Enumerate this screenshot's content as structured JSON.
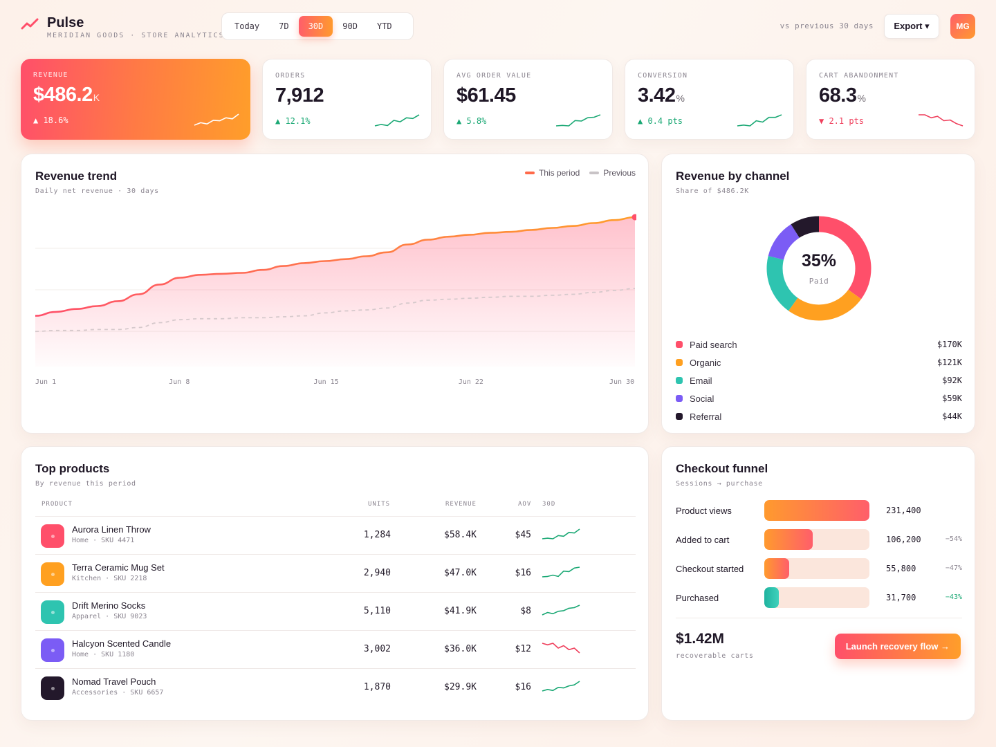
{
  "brand": {
    "name": "Pulse",
    "subtitle": "MERIDIAN GOODS · STORE ANALYTICS"
  },
  "ranges": [
    {
      "label": "Today",
      "active": false
    },
    {
      "label": "7D",
      "active": false
    },
    {
      "label": "30D",
      "active": true
    },
    {
      "label": "90D",
      "active": false
    },
    {
      "label": "YTD",
      "active": false
    }
  ],
  "compare_text": "vs previous 30 days",
  "export_label": "Export ▾",
  "avatar_initials": "MG",
  "colors": {
    "accent_start": "#ff4f6a",
    "accent_end": "#ff9e2a",
    "up": "#1aa874",
    "down": "#ef3f5c"
  },
  "kpis": [
    {
      "label": "REVENUE",
      "value": "$486.2",
      "unit": "K",
      "delta": "▲ 18.6%",
      "direction": "up",
      "spark": [
        3,
        4,
        3.5,
        5,
        4.8,
        6,
        5.6,
        7.5
      ]
    },
    {
      "label": "ORDERS",
      "value": "7,912",
      "unit": "",
      "delta": "▲ 12.1%",
      "direction": "up",
      "spark": [
        3,
        3.4,
        3.1,
        4.5,
        4.1,
        5.2,
        5,
        6
      ]
    },
    {
      "label": "AVG ORDER VALUE",
      "value": "$61.45",
      "unit": "",
      "delta": "▲ 5.8%",
      "direction": "up",
      "spark": [
        3.5,
        3.6,
        3.5,
        4.6,
        4.5,
        5.2,
        5.3,
        5.8
      ]
    },
    {
      "label": "CONVERSION",
      "value": "3.42",
      "unit": "%",
      "delta": "▲ 0.4 pts",
      "direction": "up",
      "spark": [
        3,
        3.2,
        3,
        4.2,
        3.9,
        5,
        5,
        5.6
      ]
    },
    {
      "label": "CART ABANDONMENT",
      "value": "68.3",
      "unit": "%",
      "delta": "▼ 2.1 pts",
      "direction": "down",
      "spark": [
        6,
        6,
        5.6,
        5.8,
        5.2,
        5.3,
        4.8,
        4.5
      ]
    }
  ],
  "trend": {
    "title": "Revenue trend",
    "subtitle": "Daily net revenue · 30 days",
    "legend": [
      {
        "label": "This period",
        "color": "#ff6a4a"
      },
      {
        "label": "Previous",
        "color": "#c8c3c6"
      }
    ],
    "x_labels": [
      "Jun 1",
      "Jun 8",
      "Jun 15",
      "Jun 22",
      "Jun 30"
    ]
  },
  "chart_data": {
    "type": "area",
    "x": [
      "Jun 1",
      "Jun 2",
      "Jun 3",
      "Jun 4",
      "Jun 5",
      "Jun 6",
      "Jun 7",
      "Jun 8",
      "Jun 9",
      "Jun 10",
      "Jun 11",
      "Jun 12",
      "Jun 13",
      "Jun 14",
      "Jun 15",
      "Jun 16",
      "Jun 17",
      "Jun 18",
      "Jun 19",
      "Jun 20",
      "Jun 21",
      "Jun 22",
      "Jun 23",
      "Jun 24",
      "Jun 25",
      "Jun 26",
      "Jun 27",
      "Jun 28",
      "Jun 29",
      "Jun 30"
    ],
    "series": [
      {
        "name": "This period",
        "values": [
          11.2,
          11.6,
          11.9,
          12.2,
          12.7,
          13.4,
          14.4,
          15.1,
          15.4,
          15.5,
          15.6,
          15.9,
          16.3,
          16.6,
          16.8,
          17.0,
          17.3,
          17.7,
          18.5,
          19.0,
          19.3,
          19.5,
          19.7,
          19.8,
          20.0,
          20.2,
          20.4,
          20.7,
          21.0,
          21.3
        ]
      },
      {
        "name": "Previous",
        "values": [
          9.6,
          9.7,
          9.7,
          9.8,
          9.8,
          10.0,
          10.5,
          10.8,
          10.9,
          10.9,
          11.0,
          11.0,
          11.1,
          11.2,
          11.5,
          11.7,
          11.8,
          12.0,
          12.5,
          12.8,
          12.9,
          13.0,
          13.1,
          13.2,
          13.2,
          13.3,
          13.4,
          13.6,
          13.8,
          14.0
        ]
      }
    ],
    "ylim": [
      6,
      23
    ],
    "grid": true,
    "legend_position": "top-right"
  },
  "channels": {
    "title": "Revenue by channel",
    "subtitle": "Share of $486.2K",
    "center_value": "35%",
    "center_label": "Paid",
    "items": [
      {
        "name": "Paid search",
        "value": "$170K",
        "amount": 170,
        "color": "#ff4f6a"
      },
      {
        "name": "Organic",
        "value": "$121K",
        "amount": 121,
        "color": "#ffa020"
      },
      {
        "name": "Email",
        "value": "$92K",
        "amount": 92,
        "color": "#2ec4b0"
      },
      {
        "name": "Social",
        "value": "$59K",
        "amount": 59,
        "color": "#7b5cf5"
      },
      {
        "name": "Referral",
        "value": "$44K",
        "amount": 44,
        "color": "#23182b"
      }
    ]
  },
  "products": {
    "title": "Top products",
    "subtitle": "By revenue this period",
    "columns": {
      "product": "PRODUCT",
      "units": "UNITS",
      "revenue": "REVENUE",
      "aov": "AOV",
      "spark": "30D"
    },
    "rows": [
      {
        "name": "Aurora Linen Throw",
        "meta": "Home · SKU 4471",
        "units": "1,284",
        "revenue": "$58.4K",
        "aov": "$45",
        "color": "#ff4f6a",
        "trend": "up",
        "spark": [
          3,
          3.2,
          3,
          4,
          3.8,
          5,
          4.8,
          6
        ]
      },
      {
        "name": "Terra Ceramic Mug Set",
        "meta": "Kitchen · SKU 2218",
        "units": "2,940",
        "revenue": "$47.0K",
        "aov": "$16",
        "color": "#ffa020",
        "trend": "up",
        "spark": [
          3,
          3.1,
          3.4,
          3.1,
          4.3,
          4.2,
          5,
          5.2
        ]
      },
      {
        "name": "Drift Merino Socks",
        "meta": "Apparel · SKU 9023",
        "units": "5,110",
        "revenue": "$41.9K",
        "aov": "$8",
        "color": "#2ec4b0",
        "trend": "up",
        "spark": [
          3.2,
          3.6,
          3.4,
          3.8,
          3.9,
          4.3,
          4.4,
          4.8
        ]
      },
      {
        "name": "Halcyon Scented Candle",
        "meta": "Home · SKU 1180",
        "units": "3,002",
        "revenue": "$36.0K",
        "aov": "$12",
        "color": "#7b5cf5",
        "trend": "down",
        "spark": [
          5,
          4.8,
          5,
          4.4,
          4.7,
          4.2,
          4.4,
          3.8
        ]
      },
      {
        "name": "Nomad Travel Pouch",
        "meta": "Accessories · SKU 6657",
        "units": "1,870",
        "revenue": "$29.9K",
        "aov": "$16",
        "color": "#23182b",
        "trend": "up",
        "spark": [
          3,
          3.3,
          3.1,
          3.7,
          3.6,
          4,
          4.2,
          4.9
        ]
      }
    ]
  },
  "funnel": {
    "title": "Checkout funnel",
    "subtitle": "Sessions → purchase",
    "steps": [
      {
        "label": "Product views",
        "value": "231,400",
        "pct": "",
        "fill": 1.0,
        "color": "#ff9a2e"
      },
      {
        "label": "Added to cart",
        "value": "106,200",
        "pct": "−54%",
        "fill": 0.46,
        "color": "#ff7a45"
      },
      {
        "label": "Checkout started",
        "value": "55,800",
        "pct": "−47%",
        "fill": 0.24,
        "color": "#ff6a5a"
      },
      {
        "label": "Purchased",
        "value": "31,700",
        "pct": "−43%",
        "fill": 0.14,
        "color": "#2ec4b0",
        "good": true
      }
    ],
    "recoverable_value": "$1.42M",
    "recoverable_label": "recoverable carts",
    "cta_label": "Launch recovery flow →"
  }
}
